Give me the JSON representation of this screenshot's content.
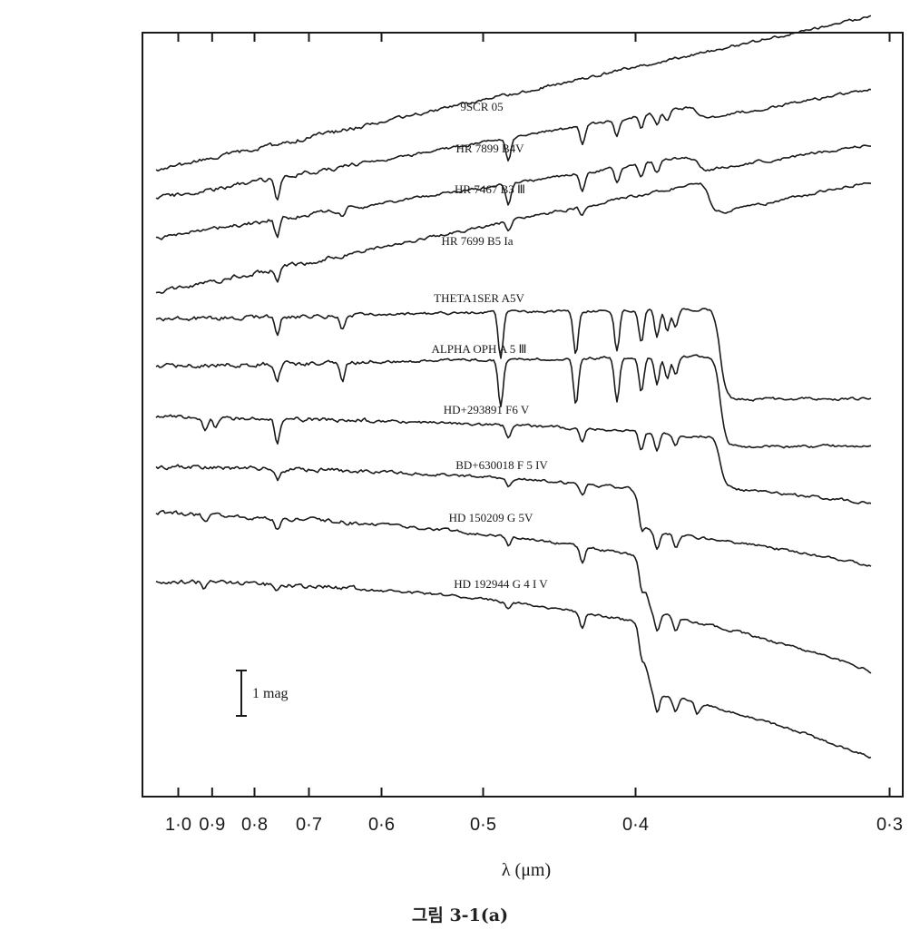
{
  "caption": "그림 3-1(a)",
  "chart_data": {
    "type": "line",
    "xlabel": "λ (μm)",
    "x_ticks": [
      {
        "value": 1.0,
        "label": "1·0"
      },
      {
        "value": 0.9,
        "label": "0·9"
      },
      {
        "value": 0.8,
        "label": "0·8"
      },
      {
        "value": 0.7,
        "label": "0·7"
      },
      {
        "value": 0.6,
        "label": "0·6"
      },
      {
        "value": 0.5,
        "label": "0·5"
      },
      {
        "value": 0.4,
        "label": "0·4"
      },
      {
        "value": 0.3,
        "label": "0·3"
      }
    ],
    "x_axis": "reciprocal wavelength (1/λ), decreasing λ to the right",
    "xlim": [
      1.05,
      0.3
    ],
    "y_units": "magnitude, spectra offset vertically",
    "scale_bar_label": "1 mag",
    "grid": false,
    "legend": "none; each spectrum labeled above its trace",
    "series": [
      {
        "name": "9SCR  05",
        "lines": [],
        "break": null,
        "slope": 3.4,
        "curve": 0.0
      },
      {
        "name": "HR 7899  B4V",
        "lines": [
          {
            "x": 0.755,
            "d": 0.9
          },
          {
            "x": 0.48,
            "d": 1.0
          },
          {
            "x": 0.43,
            "d": 0.8
          },
          {
            "x": 0.41,
            "d": 0.7
          },
          {
            "x": 0.397,
            "d": 0.6
          },
          {
            "x": 0.389,
            "d": 0.5
          },
          {
            "x": 0.384,
            "d": 0.4
          }
        ],
        "break": {
          "x": 0.37,
          "drop": 0.3
        },
        "slope": 2.7,
        "curve": 0.0
      },
      {
        "name": "HR  7467  B3 Ⅲ",
        "lines": [
          {
            "x": 0.755,
            "d": 0.8
          },
          {
            "x": 0.65,
            "d": 0.4
          },
          {
            "x": 0.48,
            "d": 0.9
          },
          {
            "x": 0.43,
            "d": 0.8
          },
          {
            "x": 0.41,
            "d": 0.7
          },
          {
            "x": 0.397,
            "d": 0.6
          },
          {
            "x": 0.389,
            "d": 0.5
          }
        ],
        "break": {
          "x": 0.37,
          "drop": 0.35
        },
        "slope": 2.4,
        "curve": 0.0
      },
      {
        "name": "HR 7699 B5 Ia",
        "lines": [
          {
            "x": 0.755,
            "d": 0.6
          },
          {
            "x": 0.48,
            "d": 0.5
          },
          {
            "x": 0.43,
            "d": 0.4
          }
        ],
        "break": {
          "x": 0.365,
          "drop": 0.75
        },
        "slope": 3.2,
        "curve": 0.0
      },
      {
        "name": "THETA1SER  A5V",
        "lines": [
          {
            "x": 0.755,
            "d": 0.8
          },
          {
            "x": 0.65,
            "d": 0.6
          },
          {
            "x": 0.486,
            "d": 2.0
          },
          {
            "x": 0.434,
            "d": 1.9
          },
          {
            "x": 0.41,
            "d": 1.8
          },
          {
            "x": 0.397,
            "d": 1.4
          },
          {
            "x": 0.389,
            "d": 1.2
          },
          {
            "x": 0.384,
            "d": 1.0
          },
          {
            "x": 0.38,
            "d": 0.8
          }
        ],
        "break": {
          "x": 0.36,
          "drop": 2.0
        },
        "slope": 0.35,
        "curve": 0.1
      },
      {
        "name": "ALPHA  OPH  A 5 Ⅲ",
        "lines": [
          {
            "x": 0.755,
            "d": 0.7
          },
          {
            "x": 0.65,
            "d": 0.8
          },
          {
            "x": 0.486,
            "d": 2.1
          },
          {
            "x": 0.434,
            "d": 2.0
          },
          {
            "x": 0.41,
            "d": 1.9
          },
          {
            "x": 0.397,
            "d": 1.5
          },
          {
            "x": 0.389,
            "d": 1.2
          },
          {
            "x": 0.384,
            "d": 1.0
          },
          {
            "x": 0.38,
            "d": 0.8
          }
        ],
        "break": {
          "x": 0.36,
          "drop": 2.0
        },
        "slope": 0.35,
        "curve": 0.1
      },
      {
        "name": "HD+293891 F6 V",
        "lines": [
          {
            "x": 0.92,
            "d": 0.6
          },
          {
            "x": 0.89,
            "d": 0.4
          },
          {
            "x": 0.755,
            "d": 1.0
          },
          {
            "x": 0.48,
            "d": 0.6
          },
          {
            "x": 0.43,
            "d": 0.6
          },
          {
            "x": 0.397,
            "d": 0.8
          },
          {
            "x": 0.389,
            "d": 0.7
          },
          {
            "x": 0.38,
            "d": 0.5
          }
        ],
        "break": {
          "x": 0.36,
          "drop": 1.1
        },
        "slope": -0.2,
        "curve": 0.6
      },
      {
        "name": "BD+630018 F 5 IV",
        "lines": [
          {
            "x": 0.755,
            "d": 0.5
          },
          {
            "x": 0.48,
            "d": 0.4
          },
          {
            "x": 0.43,
            "d": 0.4
          },
          {
            "x": 0.397,
            "d": 0.9
          },
          {
            "x": 0.389,
            "d": 0.8
          },
          {
            "x": 0.38,
            "d": 0.6
          }
        ],
        "break": {
          "x": 0.397,
          "drop": 0.9
        },
        "slope": -0.3,
        "curve": 1.0
      },
      {
        "name": "HD 150209 G 5V",
        "lines": [
          {
            "x": 0.92,
            "d": 0.3
          },
          {
            "x": 0.755,
            "d": 0.6
          },
          {
            "x": 0.48,
            "d": 0.4
          },
          {
            "x": 0.43,
            "d": 0.7
          },
          {
            "x": 0.397,
            "d": 1.0
          },
          {
            "x": 0.389,
            "d": 0.8
          },
          {
            "x": 0.38,
            "d": 0.6
          }
        ],
        "break": {
          "x": 0.395,
          "drop": 1.2
        },
        "slope": -0.7,
        "curve": 1.6
      },
      {
        "name": "HD 192944  G 4 I V",
        "lines": [
          {
            "x": 0.92,
            "d": 0.3
          },
          {
            "x": 0.755,
            "d": 0.3
          },
          {
            "x": 0.48,
            "d": 0.3
          },
          {
            "x": 0.43,
            "d": 0.7
          },
          {
            "x": 0.397,
            "d": 1.0
          },
          {
            "x": 0.389,
            "d": 0.8
          },
          {
            "x": 0.38,
            "d": 0.6
          },
          {
            "x": 0.37,
            "d": 0.5
          }
        ],
        "break": {
          "x": 0.395,
          "drop": 1.5
        },
        "slope": -0.5,
        "curve": 1.9
      }
    ]
  }
}
